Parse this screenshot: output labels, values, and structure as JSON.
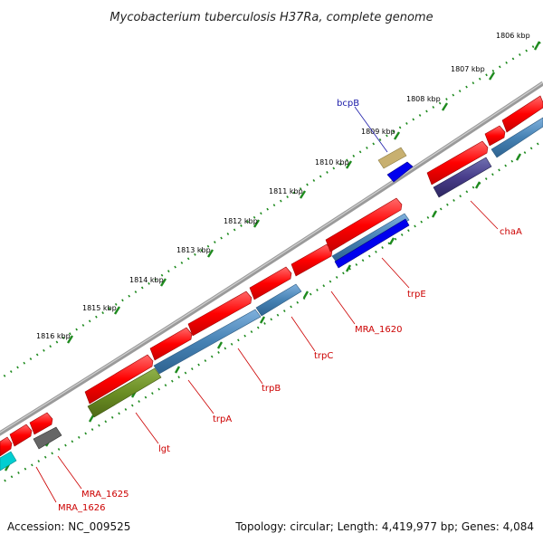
{
  "title": "Mycobacterium tuberculosis H37Ra, complete genome",
  "footer": {
    "accession": "Accession: NC_009525",
    "summary": "Topology: circular; Length: 4,419,977 bp; Genes: 4,084"
  },
  "ticks": [
    "1806 kbp",
    "1807 kbp",
    "1808 kbp",
    "1809 kbp",
    "1810 kbp",
    "1811 kbp",
    "1812 kbp",
    "1813 kbp",
    "1814 kbp",
    "1815 kbp",
    "1816 kbp"
  ],
  "genes": [
    {
      "name": "bcpB",
      "color": "#1a1aa8"
    },
    {
      "name": "chaA",
      "color": "#cc0000"
    },
    {
      "name": "trpE",
      "color": "#cc0000"
    },
    {
      "name": "MRA_1620",
      "color": "#cc0000"
    },
    {
      "name": "trpC",
      "color": "#cc0000"
    },
    {
      "name": "trpB",
      "color": "#cc0000"
    },
    {
      "name": "trpA",
      "color": "#cc0000"
    },
    {
      "name": "lgt",
      "color": "#cc0000"
    },
    {
      "name": "MRA_1625",
      "color": "#cc0000"
    },
    {
      "name": "MRA_1626",
      "color": "#cc0000"
    }
  ],
  "colors": {
    "backbone": "#8a8a8a",
    "cds_forward": "#ff0000",
    "blue_feature": "#4682b4",
    "tick_marks": "#1e8a1e"
  }
}
